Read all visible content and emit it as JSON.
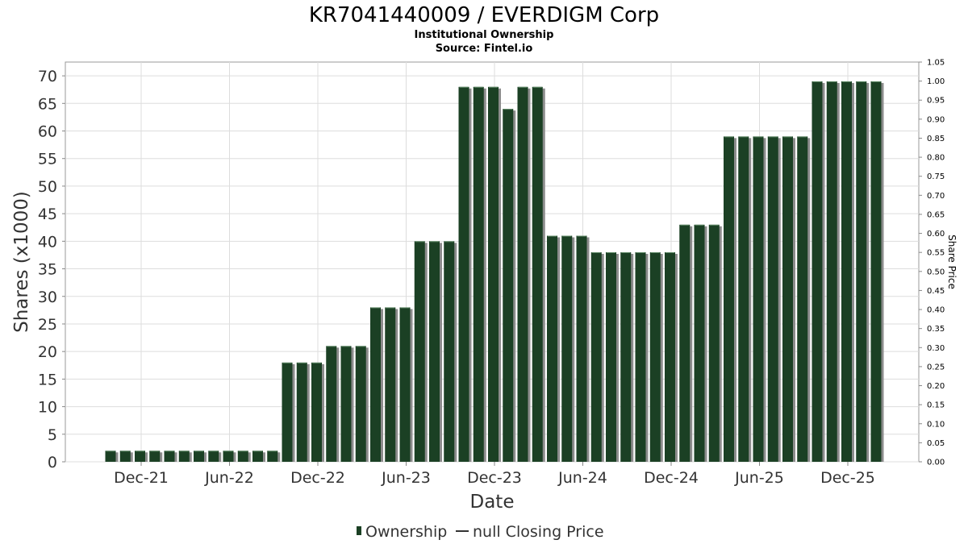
{
  "chart_data": {
    "type": "bar",
    "title": "KR7041440009 / EVERDIGM Corp",
    "subtitle": "Institutional Ownership",
    "source": "Source: Fintel.io",
    "xlabel": "Date",
    "ylabel": "Shares (x1000)",
    "y2label": "Share Price",
    "ylim": [
      0,
      72.5
    ],
    "y2lim": [
      0,
      1.05
    ],
    "yticks": [
      "0",
      "5",
      "10",
      "15",
      "20",
      "25",
      "30",
      "35",
      "40",
      "45",
      "50",
      "55",
      "60",
      "65",
      "70"
    ],
    "y2ticks": [
      "0.00",
      "0.05",
      "0.10",
      "0.15",
      "0.20",
      "0.25",
      "0.30",
      "0.35",
      "0.40",
      "0.45",
      "0.50",
      "0.55",
      "0.60",
      "0.65",
      "0.70",
      "0.75",
      "0.80",
      "0.85",
      "0.90",
      "0.95",
      "1.00",
      "1.05"
    ],
    "xticks": [
      "Dec-21",
      "Jun-22",
      "Dec-22",
      "Jun-23",
      "Dec-23",
      "Jun-24",
      "Dec-24",
      "Jun-25",
      "Dec-25"
    ],
    "grid": true,
    "legend_position": "bottom",
    "series": [
      {
        "name": "Ownership",
        "color": "#1b4024",
        "values": [
          2,
          2,
          2,
          2,
          2,
          2,
          2,
          2,
          2,
          2,
          2,
          2,
          18,
          18,
          18,
          21,
          21,
          21,
          28,
          28,
          28,
          40,
          40,
          40,
          68,
          68,
          68,
          64,
          68,
          68,
          41,
          41,
          41,
          38,
          38,
          38,
          38,
          38,
          38,
          43,
          43,
          43,
          59,
          59,
          59,
          59,
          59,
          59,
          69,
          69,
          69,
          69,
          69
        ]
      },
      {
        "name": "null Closing Price",
        "color": "#333333",
        "values": []
      }
    ]
  }
}
